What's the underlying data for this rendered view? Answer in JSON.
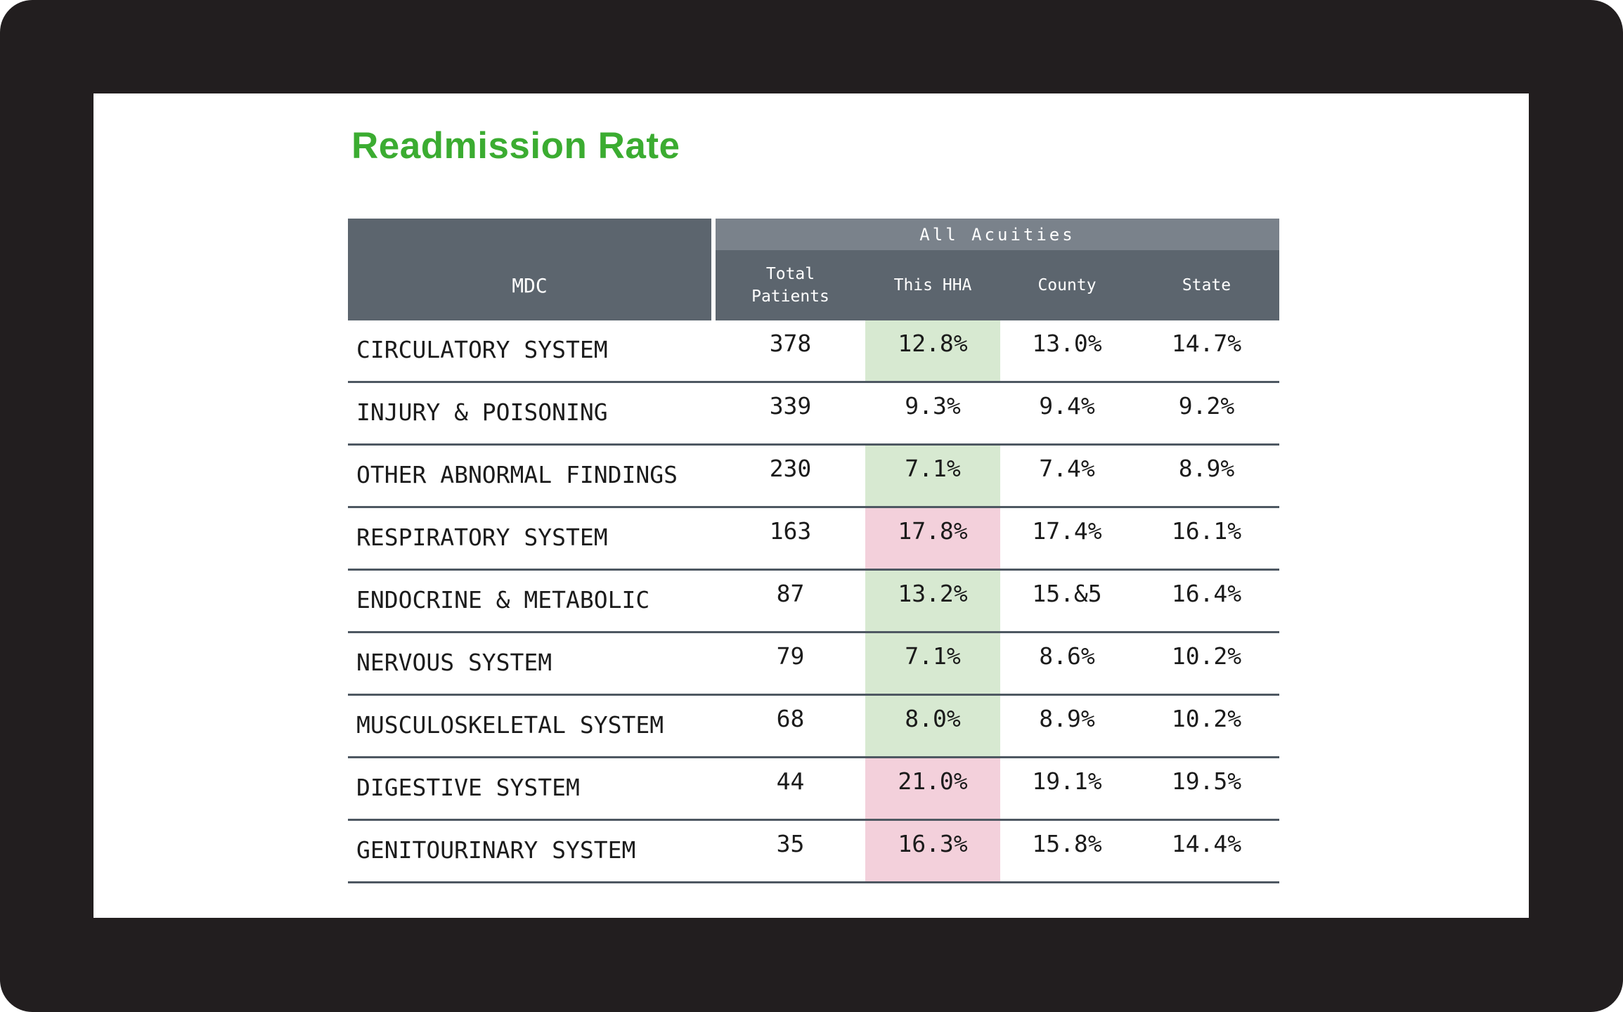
{
  "title": "Readmission Rate",
  "colors": {
    "title_green": "#3bac31",
    "frame_black": "#221e1f",
    "header_slate": "#5c656e",
    "group_band_gray": "#7a828b",
    "highlight_green": "#d7e9d1",
    "highlight_pink": "#f3d0db",
    "row_separator": "#4e5862"
  },
  "table": {
    "mdc_header": "MDC",
    "group_header": "All Acuities",
    "columns": {
      "total": "Total\nPatients",
      "hha": "This HHA",
      "county": "County",
      "state": "State"
    },
    "rows": [
      {
        "mdc": "CIRCULATORY SYSTEM",
        "total": "378",
        "hha": "12.8%",
        "county": "13.0%",
        "state": "14.7%",
        "hha_class": "green"
      },
      {
        "mdc": "INJURY & POISONING",
        "total": "339",
        "hha": "9.3%",
        "county": "9.4%",
        "state": "9.2%",
        "hha_class": "none"
      },
      {
        "mdc": "OTHER ABNORMAL FINDINGS",
        "total": "230",
        "hha": "7.1%",
        "county": "7.4%",
        "state": "8.9%",
        "hha_class": "green"
      },
      {
        "mdc": "RESPIRATORY SYSTEM",
        "total": "163",
        "hha": "17.8%",
        "county": "17.4%",
        "state": "16.1%",
        "hha_class": "pink"
      },
      {
        "mdc": "ENDOCRINE & METABOLIC",
        "total": "87",
        "hha": "13.2%",
        "county": "15.&5",
        "state": "16.4%",
        "hha_class": "green"
      },
      {
        "mdc": "NERVOUS SYSTEM",
        "total": "79",
        "hha": "7.1%",
        "county": "8.6%",
        "state": "10.2%",
        "hha_class": "green"
      },
      {
        "mdc": "MUSCULOSKELETAL SYSTEM",
        "total": "68",
        "hha": "8.0%",
        "county": "8.9%",
        "state": "10.2%",
        "hha_class": "green"
      },
      {
        "mdc": "DIGESTIVE SYSTEM",
        "total": "44",
        "hha": "21.0%",
        "county": "19.1%",
        "state": "19.5%",
        "hha_class": "pink"
      },
      {
        "mdc": "GENITOURINARY SYSTEM",
        "total": "35",
        "hha": "16.3%",
        "county": "15.8%",
        "state": "14.4%",
        "hha_class": "pink"
      }
    ]
  }
}
